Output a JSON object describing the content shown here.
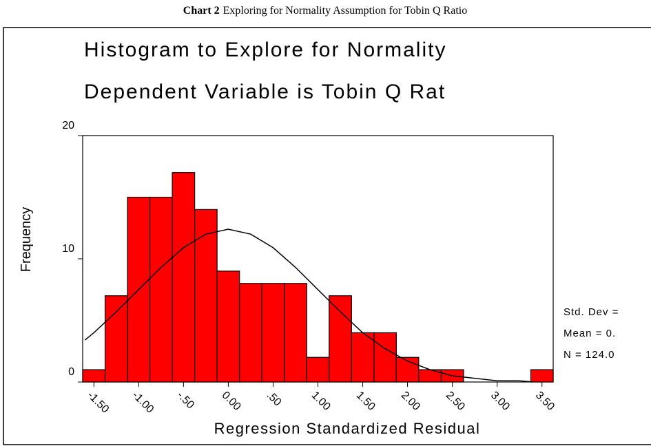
{
  "chart_data": {
    "type": "histogram",
    "caption_label": "Chart 2",
    "caption": "Exploring for Normality Assumption for Tobin Q Ratio",
    "title": "Histogram to Explore for Normality",
    "subtitle": "Dependent Variable is Tobin Q Rat",
    "ylabel": "Frequency",
    "xlabel": "Regression Standardized Residual",
    "bins": [
      -1.625,
      -1.375,
      -1.125,
      -0.875,
      -0.625,
      -0.375,
      -0.125,
      0.125,
      0.375,
      0.625,
      0.875,
      1.125,
      1.375,
      1.625,
      1.875,
      2.125,
      2.375,
      2.625,
      2.875,
      3.125,
      3.375,
      3.625
    ],
    "counts": [
      1,
      7,
      15,
      15,
      17,
      14,
      9,
      8,
      8,
      8,
      2,
      7,
      4,
      4,
      2,
      1,
      1,
      0,
      0,
      0,
      1
    ],
    "color": "#ff0000",
    "normal_curve": {
      "color": "#000000",
      "x": [
        -1.6,
        -1.5,
        -1.25,
        -1,
        -0.75,
        -0.5,
        -0.25,
        0,
        0.25,
        0.5,
        0.75,
        1,
        1.25,
        1.5,
        1.75,
        2,
        2.25,
        2.5,
        2.75,
        3,
        3.25,
        3.4
      ],
      "y": [
        3.4,
        4.0,
        5.7,
        7.5,
        9.3,
        10.9,
        12.0,
        12.4,
        12.0,
        10.9,
        9.3,
        7.5,
        5.7,
        4.0,
        2.7,
        1.7,
        1.0,
        0.5,
        0.3,
        0.1,
        0.1,
        0.0
      ]
    },
    "stats": [
      "Std. Dev =",
      "Mean = 0.",
      "N = 124.0"
    ],
    "xlim": [
      -1.625,
      3.625
    ],
    "ylim": [
      0,
      20
    ],
    "yticks": [
      0,
      10,
      20
    ],
    "xticks": [
      {
        "value": -1.5,
        "label": "-1.50"
      },
      {
        "value": -1,
        "label": "-1.00"
      },
      {
        "value": -0.5,
        "label": "-.50"
      },
      {
        "value": 0,
        "label": "0.00"
      },
      {
        "value": 0.5,
        "label": ".50"
      },
      {
        "value": 1,
        "label": "1.00"
      },
      {
        "value": 1.5,
        "label": "1.50"
      },
      {
        "value": 2,
        "label": "2.00"
      },
      {
        "value": 2.5,
        "label": "2.50"
      },
      {
        "value": 3,
        "label": "3.00"
      },
      {
        "value": 3.5,
        "label": "3.50"
      }
    ]
  }
}
